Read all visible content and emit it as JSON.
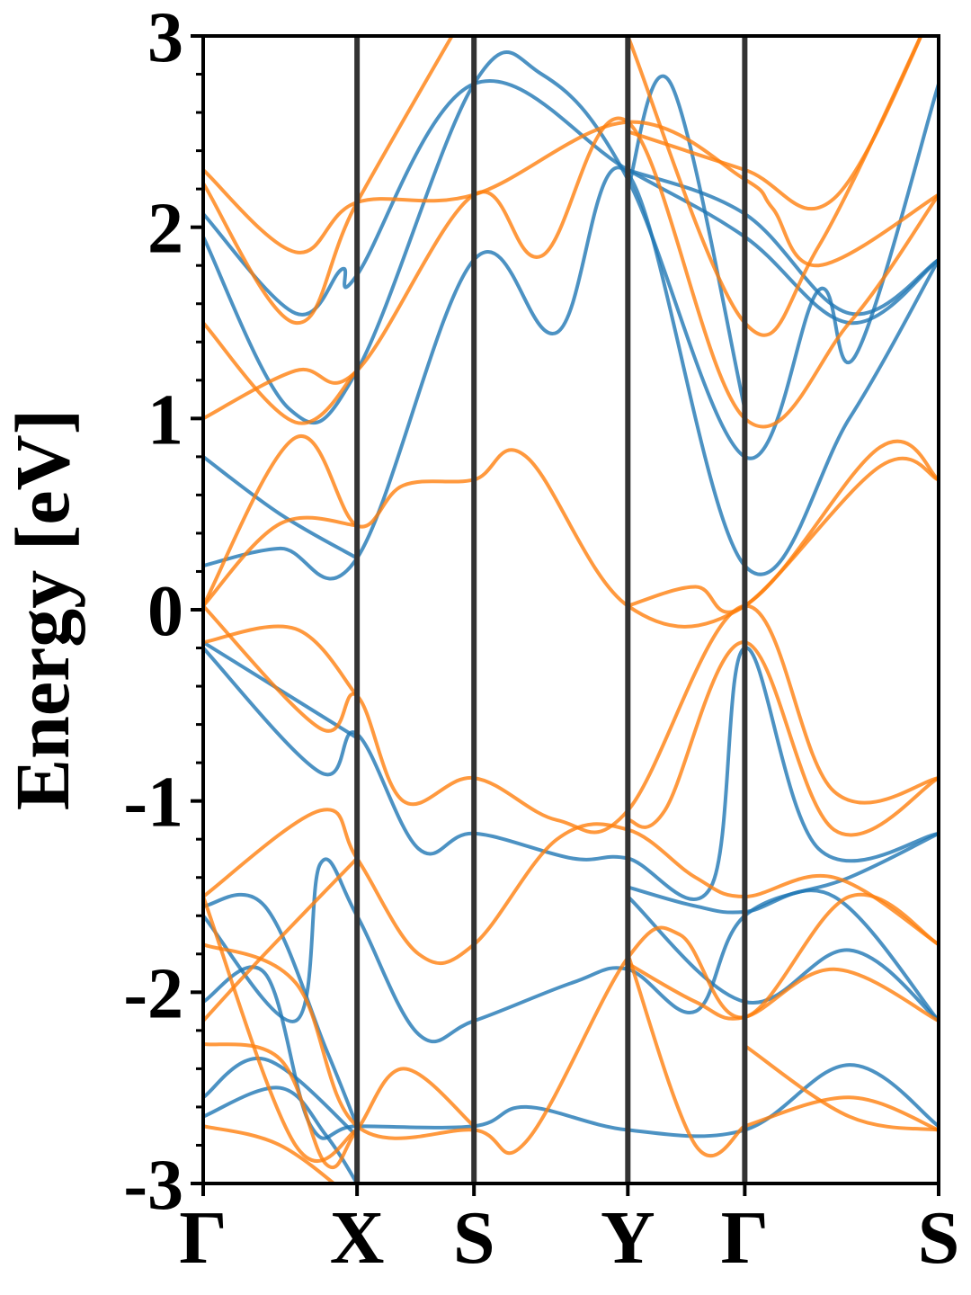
{
  "chart_data": {
    "type": "line",
    "title": "",
    "ylabel": "Energy [eV]",
    "xlabel": "",
    "ylim": [
      -3,
      3
    ],
    "yticks": [
      -3,
      -2,
      -1,
      0,
      1,
      2,
      3
    ],
    "ytick_labels": [
      "-3",
      "-2",
      "-1",
      "0",
      "1",
      "2",
      "3"
    ],
    "kpath": [
      {
        "label": "Γ",
        "x": 0.0
      },
      {
        "label": "X",
        "x": 0.5
      },
      {
        "label": "S",
        "x": 0.88
      },
      {
        "label": "Y",
        "x": 1.38
      },
      {
        "label": "Γ",
        "x": 1.76
      },
      {
        "label": "S",
        "x": 2.39
      }
    ],
    "grid": false,
    "legend": "none",
    "colors": {
      "spin_up": "#1f77b4",
      "spin_down": "#ff7f0e",
      "kpoint_line": "#333333"
    },
    "series": [
      {
        "group": "spin_up",
        "points": [
          [
            0,
            0.23
          ],
          [
            0.25,
            0.32
          ],
          [
            0.5,
            0.27
          ],
          [
            0.88,
            1.83
          ],
          [
            1.15,
            1.45
          ],
          [
            1.38,
            2.28
          ],
          [
            1.76,
            0.23
          ],
          [
            2.1,
            1.0
          ],
          [
            2.39,
            1.83
          ]
        ]
      },
      {
        "group": "spin_up",
        "points": [
          [
            0,
            0.8
          ],
          [
            0.25,
            0.5
          ],
          [
            0.5,
            0.27
          ]
        ]
      },
      {
        "group": "spin_up",
        "points": [
          [
            0,
            1.95
          ],
          [
            0.28,
            1.05
          ],
          [
            0.5,
            1.25
          ],
          [
            0.88,
            2.75
          ],
          [
            1.1,
            2.8
          ],
          [
            1.38,
            2.25
          ],
          [
            1.76,
            0.8
          ],
          [
            2.0,
            1.67
          ],
          [
            2.12,
            1.33
          ],
          [
            2.39,
            2.75
          ]
        ]
      },
      {
        "group": "spin_up",
        "points": [
          [
            0,
            2.07
          ],
          [
            0.3,
            1.55
          ],
          [
            0.45,
            1.78
          ],
          [
            0.5,
            1.75
          ],
          [
            0.88,
            2.75
          ],
          [
            1.38,
            2.3
          ],
          [
            1.76,
            1.95
          ],
          [
            2.1,
            1.5
          ],
          [
            2.39,
            1.83
          ]
        ]
      },
      {
        "group": "spin_up",
        "points": [
          [
            1.38,
            2.3
          ],
          [
            1.76,
            2.07
          ],
          [
            2.1,
            1.55
          ],
          [
            2.39,
            1.83
          ]
        ]
      },
      {
        "group": "spin_up",
        "points": [
          [
            1.38,
            2.2
          ],
          [
            1.52,
            2.75
          ],
          [
            1.76,
            1.05
          ]
        ]
      },
      {
        "group": "spin_up",
        "points": [
          [
            0,
            -0.2
          ],
          [
            0.38,
            -0.85
          ],
          [
            0.5,
            -0.65
          ],
          [
            0.7,
            -1.25
          ],
          [
            0.88,
            -1.17
          ],
          [
            1.2,
            -1.3
          ],
          [
            1.38,
            -1.3
          ],
          [
            1.65,
            -1.45
          ],
          [
            1.76,
            -0.2
          ],
          [
            2.0,
            -1.25
          ],
          [
            2.39,
            -1.17
          ]
        ]
      },
      {
        "group": "spin_up",
        "points": [
          [
            0,
            -0.17
          ],
          [
            0.3,
            -0.47
          ],
          [
            0.5,
            -0.67
          ]
        ]
      },
      {
        "group": "spin_up",
        "points": [
          [
            0,
            -1.6
          ],
          [
            0.3,
            -2.15
          ],
          [
            0.38,
            -1.33
          ],
          [
            0.5,
            -1.6
          ],
          [
            0.7,
            -2.22
          ],
          [
            0.88,
            -2.15
          ],
          [
            1.2,
            -1.95
          ],
          [
            1.38,
            -1.88
          ],
          [
            1.6,
            -2.1
          ],
          [
            1.76,
            -1.6
          ],
          [
            2.1,
            -1.4
          ],
          [
            2.39,
            -1.17
          ]
        ]
      },
      {
        "group": "spin_up",
        "points": [
          [
            0,
            -2.05
          ],
          [
            0.2,
            -1.9
          ],
          [
            0.35,
            -2.7
          ],
          [
            0.5,
            -2.7
          ],
          [
            0.88,
            -2.7
          ],
          [
            1.05,
            -2.6
          ],
          [
            1.38,
            -2.72
          ],
          [
            1.76,
            -2.72
          ],
          [
            2.1,
            -2.38
          ],
          [
            2.39,
            -2.7
          ]
        ]
      },
      {
        "group": "spin_up",
        "points": [
          [
            0,
            -2.55
          ],
          [
            0.2,
            -2.35
          ],
          [
            0.5,
            -2.75
          ]
        ]
      },
      {
        "group": "spin_up",
        "points": [
          [
            0,
            -2.65
          ],
          [
            0.25,
            -2.5
          ],
          [
            0.4,
            -2.75
          ],
          [
            0.5,
            -3.0
          ]
        ]
      },
      {
        "group": "spin_up",
        "points": [
          [
            1.38,
            -1.45
          ],
          [
            1.6,
            -1.55
          ],
          [
            1.76,
            -1.58
          ],
          [
            2.05,
            -1.5
          ],
          [
            2.39,
            -2.15
          ]
        ]
      },
      {
        "group": "spin_up",
        "points": [
          [
            1.38,
            -1.5
          ],
          [
            1.76,
            -2.05
          ],
          [
            2.1,
            -1.78
          ],
          [
            2.39,
            -2.15
          ]
        ]
      },
      {
        "group": "spin_up",
        "points": [
          [
            0,
            -1.55
          ],
          [
            0.2,
            -1.55
          ],
          [
            0.4,
            -2.3
          ],
          [
            0.5,
            -2.7
          ]
        ]
      },
      {
        "group": "spin_down",
        "points": [
          [
            0,
            0.02
          ],
          [
            0.3,
            0.9
          ],
          [
            0.5,
            0.44
          ],
          [
            0.65,
            0.65
          ],
          [
            0.88,
            0.68
          ],
          [
            1.05,
            0.8
          ],
          [
            1.38,
            0.02
          ],
          [
            1.76,
            0.02
          ],
          [
            2.2,
            0.85
          ],
          [
            2.39,
            0.68
          ]
        ]
      },
      {
        "group": "spin_down",
        "points": [
          [
            0,
            0.02
          ],
          [
            0.25,
            0.45
          ],
          [
            0.5,
            0.44
          ]
        ]
      },
      {
        "group": "spin_down",
        "points": [
          [
            1.38,
            0.02
          ],
          [
            1.6,
            0.12
          ],
          [
            1.76,
            0.02
          ],
          [
            2.2,
            0.75
          ],
          [
            2.39,
            0.68
          ]
        ]
      },
      {
        "group": "spin_down",
        "points": [
          [
            0,
            1.0
          ],
          [
            0.3,
            1.25
          ],
          [
            0.5,
            1.25
          ],
          [
            0.88,
            2.17
          ],
          [
            1.1,
            1.85
          ],
          [
            1.38,
            2.55
          ],
          [
            1.76,
            1.0
          ],
          [
            2.1,
            1.5
          ],
          [
            2.39,
            2.17
          ]
        ]
      },
      {
        "group": "spin_down",
        "points": [
          [
            0,
            1.5
          ],
          [
            0.3,
            0.98
          ],
          [
            0.5,
            1.25
          ]
        ]
      },
      {
        "group": "spin_down",
        "points": [
          [
            0,
            2.23
          ],
          [
            0.3,
            1.5
          ],
          [
            0.5,
            2.13
          ],
          [
            0.88,
            3.2
          ]
        ]
      },
      {
        "group": "spin_down",
        "points": [
          [
            0,
            2.3
          ],
          [
            0.3,
            1.87
          ],
          [
            0.5,
            2.13
          ],
          [
            0.88,
            2.17
          ],
          [
            1.38,
            2.55
          ],
          [
            1.76,
            2.25
          ],
          [
            1.85,
            2.1
          ],
          [
            2.0,
            1.8
          ],
          [
            2.39,
            2.17
          ]
        ]
      },
      {
        "group": "spin_down",
        "points": [
          [
            1.38,
            2.5
          ],
          [
            1.76,
            2.3
          ],
          [
            2.05,
            2.15
          ],
          [
            2.39,
            3.2
          ]
        ]
      },
      {
        "group": "spin_down",
        "points": [
          [
            1.38,
            3.0
          ],
          [
            1.76,
            1.5
          ],
          [
            2.0,
            1.9
          ],
          [
            2.39,
            3.2
          ]
        ]
      },
      {
        "group": "spin_down",
        "points": [
          [
            0,
            0.02
          ],
          [
            0.38,
            -0.62
          ],
          [
            0.5,
            -0.45
          ],
          [
            0.65,
            -1.0
          ],
          [
            0.88,
            -0.88
          ],
          [
            1.15,
            -1.1
          ],
          [
            1.38,
            -1.05
          ],
          [
            1.76,
            0.02
          ],
          [
            2.05,
            -0.95
          ],
          [
            2.39,
            -0.88
          ]
        ]
      },
      {
        "group": "spin_down",
        "points": [
          [
            0,
            -0.17
          ],
          [
            0.3,
            -0.1
          ],
          [
            0.5,
            -0.45
          ]
        ]
      },
      {
        "group": "spin_down",
        "points": [
          [
            1.38,
            -1.1
          ],
          [
            1.5,
            -1.05
          ],
          [
            1.76,
            -0.17
          ],
          [
            2.05,
            -1.15
          ],
          [
            2.39,
            -0.88
          ]
        ]
      },
      {
        "group": "spin_down",
        "points": [
          [
            0,
            -1.5
          ],
          [
            0.38,
            -1.05
          ],
          [
            0.5,
            -1.3
          ],
          [
            0.7,
            -1.8
          ],
          [
            0.88,
            -1.75
          ],
          [
            1.15,
            -1.2
          ],
          [
            1.38,
            -1.15
          ],
          [
            1.6,
            -1.4
          ],
          [
            1.76,
            -1.5
          ],
          [
            2.05,
            -1.4
          ],
          [
            2.39,
            -1.75
          ]
        ]
      },
      {
        "group": "spin_down",
        "points": [
          [
            0,
            -1.75
          ],
          [
            0.3,
            -1.95
          ],
          [
            0.5,
            -2.7
          ],
          [
            0.88,
            -2.72
          ],
          [
            1.05,
            -2.78
          ],
          [
            1.38,
            -1.82
          ],
          [
            1.55,
            -1.7
          ],
          [
            1.76,
            -2.13
          ],
          [
            2.1,
            -1.5
          ],
          [
            2.39,
            -1.75
          ]
        ]
      },
      {
        "group": "spin_down",
        "points": [
          [
            0,
            -2.15
          ],
          [
            0.2,
            -1.8
          ],
          [
            0.5,
            -1.3
          ]
        ]
      },
      {
        "group": "spin_down",
        "points": [
          [
            0,
            -2.27
          ],
          [
            0.25,
            -2.35
          ],
          [
            0.4,
            -2.9
          ],
          [
            0.5,
            -2.72
          ],
          [
            0.65,
            -2.4
          ],
          [
            0.88,
            -2.7
          ]
        ]
      },
      {
        "group": "spin_down",
        "points": [
          [
            0,
            -2.7
          ],
          [
            0.25,
            -2.8
          ],
          [
            0.5,
            -3.1
          ]
        ]
      },
      {
        "group": "spin_down",
        "points": [
          [
            1.38,
            -1.85
          ],
          [
            1.6,
            -2.05
          ],
          [
            1.76,
            -2.13
          ],
          [
            2.05,
            -1.88
          ],
          [
            2.39,
            -2.15
          ]
        ]
      },
      {
        "group": "spin_down",
        "points": [
          [
            1.76,
            -2.28
          ],
          [
            2.1,
            -2.65
          ],
          [
            2.39,
            -2.72
          ]
        ]
      },
      {
        "group": "spin_down",
        "points": [
          [
            1.76,
            -2.7
          ],
          [
            2.1,
            -2.55
          ],
          [
            2.39,
            -2.72
          ]
        ]
      },
      {
        "group": "spin_down",
        "points": [
          [
            0,
            -1.5
          ],
          [
            0.3,
            -2.8
          ],
          [
            0.5,
            -2.72
          ]
        ]
      },
      {
        "group": "spin_down",
        "points": [
          [
            1.38,
            -1.8
          ],
          [
            1.6,
            -2.8
          ],
          [
            1.76,
            -2.7
          ]
        ]
      }
    ]
  }
}
